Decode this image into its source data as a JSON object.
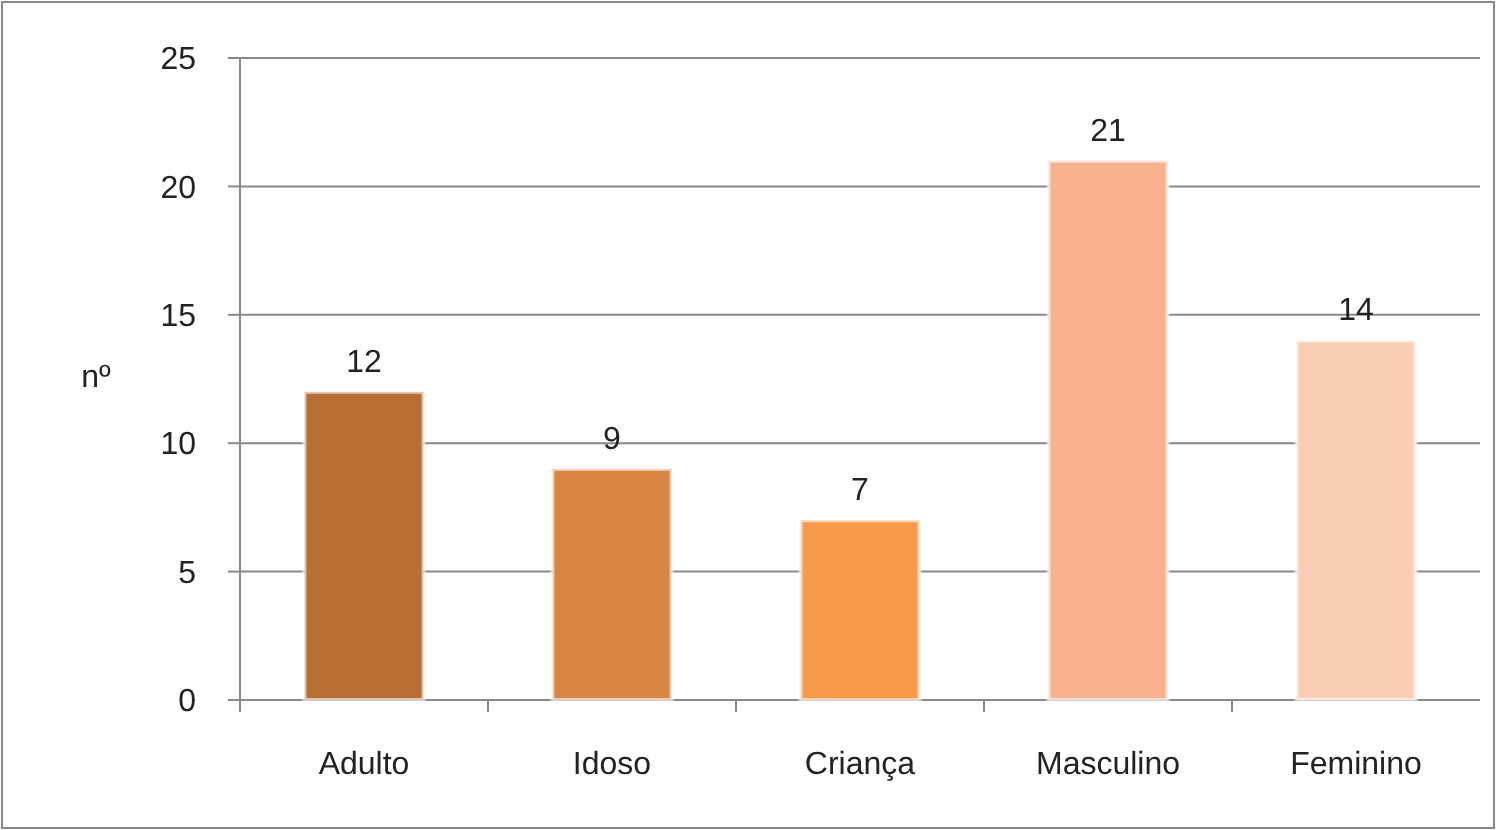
{
  "chart_data": {
    "type": "bar",
    "ylabel": "nº",
    "categories": [
      "Adulto",
      "Idoso",
      "Criança",
      "Masculino",
      "Feminino"
    ],
    "values": [
      12,
      9,
      7,
      21,
      14
    ],
    "colors": [
      "#b76f34",
      "#d98642",
      "#f79a4b",
      "#f8b290",
      "#f9ceb4"
    ],
    "ylim": [
      0,
      25
    ],
    "yticks": [
      0,
      5,
      10,
      15,
      20,
      25
    ],
    "grid": "y",
    "data_labels": true
  }
}
